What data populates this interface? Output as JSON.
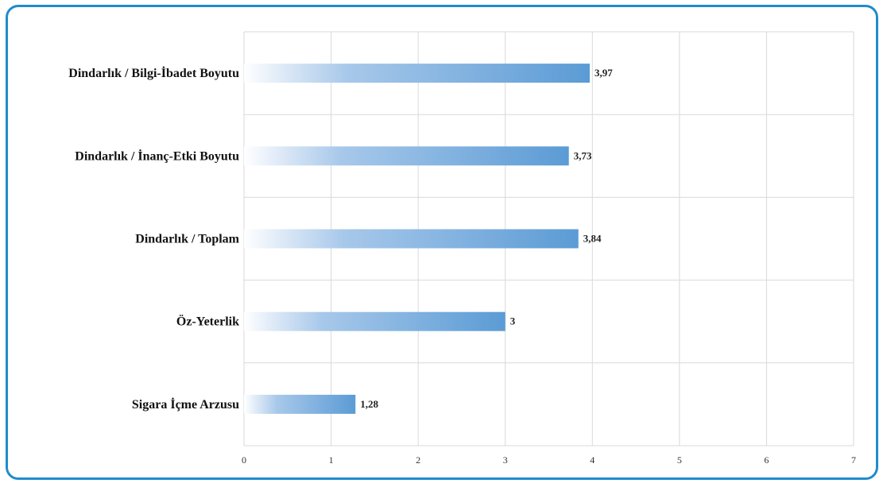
{
  "colors": {
    "frame": "#1f8ccb",
    "bar": "#5b9bd5",
    "grid": "#d9d9d9"
  },
  "chart_data": {
    "type": "bar",
    "orientation": "horizontal",
    "categories": [
      "Dindarlık / Bilgi-İbadet Boyutu",
      "Dindarlık / İnanç-Etki Boyutu",
      "Dindarlık / Toplam",
      "Öz-Yeterlik",
      "Sigara İçme Arzusu"
    ],
    "values": [
      3.97,
      3.73,
      3.84,
      3,
      1.28
    ],
    "data_labels": [
      "3,97",
      "3,73",
      "3,84",
      "3",
      "1,28"
    ],
    "xlim": [
      0,
      7
    ],
    "x_ticks": [
      "0",
      "1",
      "2",
      "3",
      "4",
      "5",
      "6",
      "7"
    ],
    "grid": true,
    "title": "",
    "xlabel": "",
    "ylabel": ""
  }
}
